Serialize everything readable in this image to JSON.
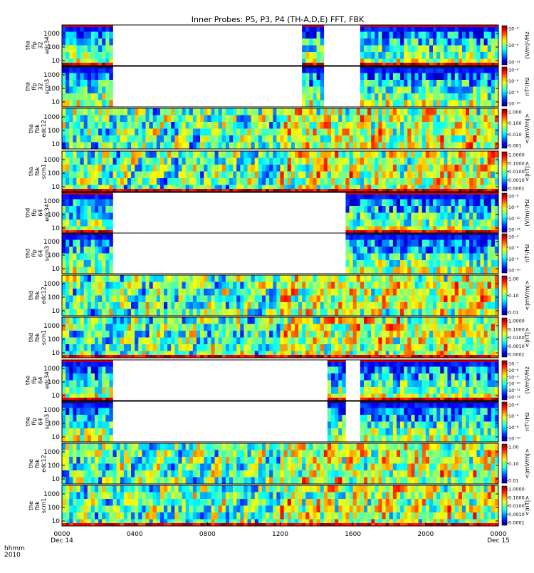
{
  "chart_data": {
    "type": "heatmap",
    "title": "Inner Probes: P5, P3, P4 (TH-A,D,E) FFT, FBK",
    "time_axis": {
      "label_lines": [
        "hhmm",
        "2010"
      ],
      "ticks": [
        {
          "value": 0,
          "text": "0000",
          "sub": "Dec 14"
        },
        {
          "value": 4,
          "text": "0400",
          "sub": ""
        },
        {
          "value": 8,
          "text": "0800",
          "sub": ""
        },
        {
          "value": 12,
          "text": "1200",
          "sub": ""
        },
        {
          "value": 16,
          "text": "1600",
          "sub": ""
        },
        {
          "value": 20,
          "text": "2000",
          "sub": ""
        },
        {
          "value": 24,
          "text": "0000",
          "sub": "Dec 15"
        }
      ],
      "range_hours": [
        0,
        24
      ]
    },
    "panels": [
      {
        "label": [
          "tha",
          "ffp",
          "32",
          "edc34"
        ],
        "y_ticks": [
          "1000",
          "100",
          "10"
        ],
        "colorbar_ticks": [
          "10⁻⁶",
          "10⁻⁹",
          "10⁻¹²"
        ],
        "colorbar_label": "(V/m)²/Hz",
        "data_intervals": [
          [
            0,
            2.8
          ],
          [
            13.3,
            14.3
          ],
          [
            16.4,
            24
          ]
        ],
        "low_freq_band": true,
        "cap": "red"
      },
      {
        "label": [
          "tha",
          "ffp",
          "32",
          "scm3"
        ],
        "y_ticks": [
          "1000",
          "100",
          "10"
        ],
        "colorbar_ticks": [
          "10⁻⁴",
          "10⁻⁶",
          "10⁻⁸",
          "10⁻¹⁰"
        ],
        "colorbar_label": "nT²/Hz",
        "data_intervals": [
          [
            0,
            2.8
          ],
          [
            13.3,
            14.3
          ],
          [
            16.4,
            24
          ]
        ],
        "low_freq_band": false,
        "cap": "navy"
      },
      {
        "label": [
          "tha",
          "fbk",
          "edc12"
        ],
        "y_ticks": [
          "1000",
          "100",
          "10"
        ],
        "colorbar_ticks": [
          "1.000",
          "0.100",
          "0.010",
          "0.001"
        ],
        "colorbar_label": "<|mV/m|>",
        "data_intervals": [
          [
            0,
            24
          ]
        ],
        "low_freq_band": false,
        "cap": "none"
      },
      {
        "label": [
          "tha",
          "fbk",
          "scm1"
        ],
        "y_ticks": [
          "1000",
          "100",
          "10"
        ],
        "colorbar_ticks": [
          "1.0000",
          "0.1000",
          "0.0100",
          "0.0010",
          "0.0001"
        ],
        "colorbar_label": "<|nT|>",
        "data_intervals": [
          [
            0,
            24
          ]
        ],
        "low_freq_band": true,
        "cap": "none"
      },
      {
        "label": [
          "thd",
          "ffp",
          "64",
          "edc34"
        ],
        "y_ticks": [
          "1000",
          "100",
          "10"
        ],
        "colorbar_ticks": [
          "10⁻⁶",
          "10⁻⁸",
          "10⁻¹⁰",
          "10⁻¹²"
        ],
        "colorbar_label": "(V/m)²/Hz",
        "data_intervals": [
          [
            0,
            2.8
          ],
          [
            15.7,
            24
          ]
        ],
        "low_freq_band": true,
        "cap": "red"
      },
      {
        "label": [
          "thd",
          "ffp",
          "64",
          "scm3"
        ],
        "y_ticks": [
          "1000",
          "100",
          "10"
        ],
        "colorbar_ticks": [
          "10⁻⁴",
          "10⁻⁶",
          "10⁻⁸",
          "10⁻¹⁰"
        ],
        "colorbar_label": "nT²/Hz",
        "data_intervals": [
          [
            0,
            2.8
          ],
          [
            15.7,
            24
          ]
        ],
        "low_freq_band": false,
        "cap": "navy"
      },
      {
        "label": [
          "thd",
          "fbk",
          "edc12"
        ],
        "y_ticks": [
          "1000",
          "100",
          "10"
        ],
        "colorbar_ticks": [
          "1.00",
          "0.10",
          "0.01"
        ],
        "colorbar_label": "<|mV/m|>",
        "data_intervals": [
          [
            0,
            24
          ]
        ],
        "low_freq_band": false,
        "cap": "none"
      },
      {
        "label": [
          "thd",
          "fbk",
          "scm1"
        ],
        "y_ticks": [
          "1000",
          "100",
          "10"
        ],
        "colorbar_ticks": [
          "1.0000",
          "0.1000",
          "0.0100",
          "0.0010",
          "0.0001"
        ],
        "colorbar_label": "<|nT|>",
        "data_intervals": [
          [
            0,
            24
          ]
        ],
        "low_freq_band": true,
        "cap": "none"
      },
      {
        "label": [
          "the",
          "ffp",
          "64",
          "edc34"
        ],
        "y_ticks": [
          "1000",
          "100",
          "10"
        ],
        "colorbar_ticks": [
          "10⁻⁷",
          "10⁻⁸",
          "10⁻⁹",
          "10⁻¹⁰",
          "10⁻¹¹",
          "10⁻¹²"
        ],
        "colorbar_label": "(V/m)²/Hz",
        "data_intervals": [
          [
            0,
            2.8
          ],
          [
            14.6,
            15.5
          ],
          [
            16.4,
            24
          ]
        ],
        "low_freq_band": true,
        "cap": "red"
      },
      {
        "label": [
          "the",
          "ffp",
          "64",
          "scm3"
        ],
        "y_ticks": [
          "1000",
          "100",
          "10"
        ],
        "colorbar_ticks": [
          "10⁻⁴",
          "10⁻⁶",
          "10⁻⁸",
          "10⁻¹⁰"
        ],
        "colorbar_label": "nT²/Hz",
        "data_intervals": [
          [
            0,
            2.8
          ],
          [
            14.6,
            15.5
          ],
          [
            16.4,
            24
          ]
        ],
        "low_freq_band": false,
        "cap": "navy"
      },
      {
        "label": [
          "the",
          "fbk",
          "edc12"
        ],
        "y_ticks": [
          "1000",
          "100",
          "10"
        ],
        "colorbar_ticks": [
          "1.00",
          "0.10",
          "0.01"
        ],
        "colorbar_label": "<|mV/m|>",
        "data_intervals": [
          [
            0,
            24
          ]
        ],
        "low_freq_band": false,
        "cap": "none"
      },
      {
        "label": [
          "the",
          "fbk",
          "scm1"
        ],
        "y_ticks": [
          "1000",
          "100",
          "10"
        ],
        "colorbar_ticks": [
          "1.0000",
          "0.1000",
          "0.0100",
          "0.0010",
          "0.0001"
        ],
        "colorbar_label": "<|nT|>",
        "data_intervals": [
          [
            0,
            24
          ]
        ],
        "low_freq_band": true,
        "cap": "none"
      }
    ]
  }
}
